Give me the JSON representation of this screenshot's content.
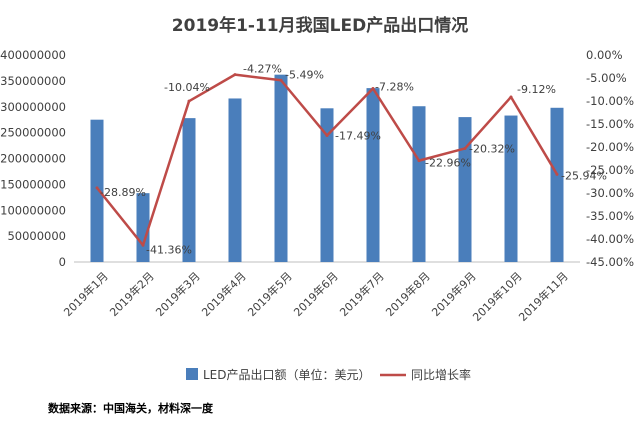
{
  "chart_data": {
    "type": "bar",
    "title": "2019年1-11月我国LED产品出口情况",
    "categories": [
      "2019年1月",
      "2019年2月",
      "2019年3月",
      "2019年4月",
      "2019年5月",
      "2019年6月",
      "2019年7月",
      "2019年8月",
      "2019年9月",
      "2019年10月",
      "2019年11月"
    ],
    "series": [
      {
        "name": "LED产品出口额（单位：美元）",
        "type": "bar",
        "axis": "left",
        "color": "#4a7ebb",
        "values": [
          275000000,
          133000000,
          278000000,
          316000000,
          362000000,
          297000000,
          336000000,
          301000000,
          280000000,
          283000000,
          298000000
        ]
      },
      {
        "name": "同比增长率",
        "type": "line",
        "axis": "right",
        "color": "#be4b48",
        "values": [
          -28.89,
          -41.36,
          -10.04,
          -4.27,
          -5.49,
          -17.49,
          -7.28,
          -22.96,
          -20.32,
          -9.12,
          -25.94
        ],
        "labels": [
          "-28.89%",
          "-41.36%",
          "-10.04%",
          "-4.27%",
          "-5.49%",
          "-17.49%",
          "-7.28%",
          "-22.96%",
          "-20.32%",
          "-9.12%",
          "-25.94%"
        ]
      }
    ],
    "y_left": {
      "min": 0,
      "max": 400000000,
      "ticks": [
        "400000000",
        "350000000",
        "300000000",
        "250000000",
        "200000000",
        "150000000",
        "100000000",
        "50000000",
        "0"
      ]
    },
    "y_right": {
      "min": -45,
      "max": 0,
      "ticks": [
        "0.00%",
        "-5.00%",
        "-10.00%",
        "-15.00%",
        "-20.00%",
        "-25.00%",
        "-30.00%",
        "-35.00%",
        "-40.00%",
        "-45.00%"
      ]
    },
    "grid": false,
    "legend_position": "bottom",
    "source": "数据来源：中国海关，材料深一度"
  }
}
